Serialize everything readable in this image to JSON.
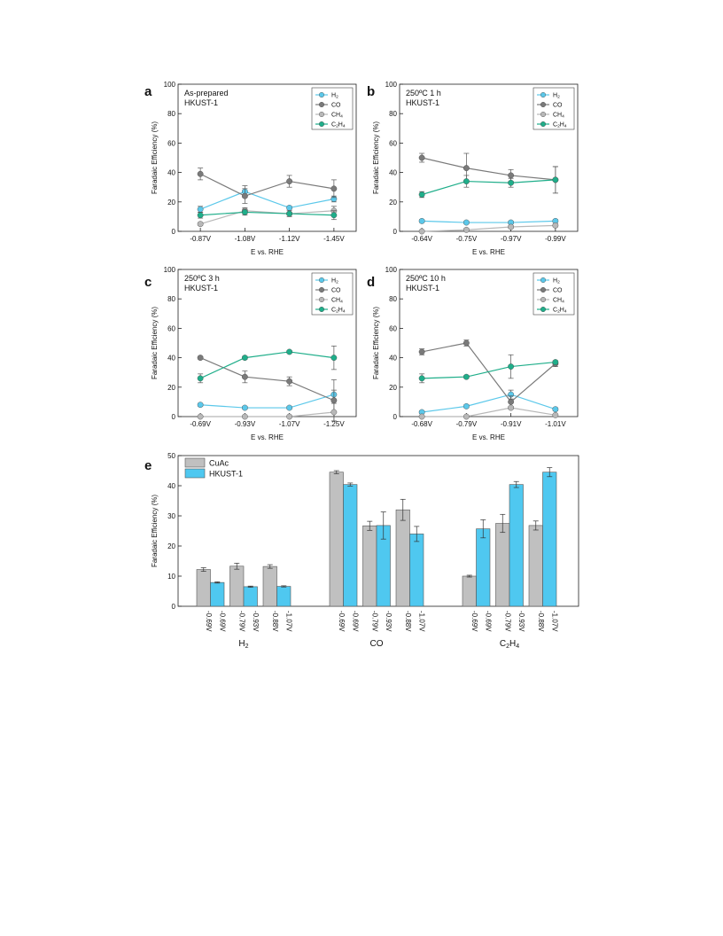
{
  "chart_data": [
    {
      "panel": "a",
      "type": "line",
      "annotation": [
        "As-prepared",
        "HKUST-1"
      ],
      "categories": [
        "-0.87V",
        "-1.08V",
        "-1.12V",
        "-1.45V"
      ],
      "xlabel": "E vs. RHE",
      "ylabel": "Faradaic Efficiency (%)",
      "ylim": [
        0,
        100
      ],
      "yticks": [
        0,
        20,
        40,
        60,
        80,
        100
      ],
      "legend_position": "top-right",
      "series": [
        {
          "name": "H2",
          "label_main": "H",
          "label_sub": "2",
          "color": "#5bc8ea",
          "values": [
            15,
            27,
            16,
            22
          ],
          "errors": [
            2,
            4,
            1,
            2
          ]
        },
        {
          "name": "CO",
          "label_main": "CO",
          "label_sub": "",
          "color": "#7a7a7a",
          "values": [
            39,
            24,
            34,
            29
          ],
          "errors": [
            4,
            5,
            4,
            6
          ]
        },
        {
          "name": "CH4",
          "label_main": "CH",
          "label_sub": "4",
          "color": "#b8b8b8",
          "values": [
            5,
            14,
            12,
            14
          ],
          "errors": [
            1,
            2,
            2,
            3
          ]
        },
        {
          "name": "C2H4",
          "label_main": "C",
          "label_sub": "2",
          "label_main2": "H",
          "label_sub2": "4",
          "color": "#1fae8a",
          "values": [
            11,
            13,
            12,
            11
          ],
          "errors": [
            2,
            2,
            1,
            3
          ]
        }
      ]
    },
    {
      "panel": "b",
      "type": "line",
      "annotation": [
        "250ºC 1 h",
        "HKUST-1"
      ],
      "categories": [
        "-0.64V",
        "-0.75V",
        "-0.97V",
        "-0.99V"
      ],
      "xlabel": "E vs. RHE",
      "ylabel": "Faradaic Efficiency (%)",
      "ylim": [
        0,
        100
      ],
      "yticks": [
        0,
        20,
        40,
        60,
        80,
        100
      ],
      "legend_position": "top-right",
      "series": [
        {
          "name": "H2",
          "label_main": "H",
          "label_sub": "2",
          "color": "#5bc8ea",
          "values": [
            7,
            6,
            6,
            7
          ],
          "errors": [
            1,
            1,
            1,
            1
          ]
        },
        {
          "name": "CO",
          "label_main": "CO",
          "label_sub": "",
          "color": "#7a7a7a",
          "values": [
            50,
            43,
            38,
            35
          ],
          "errors": [
            3,
            10,
            4,
            9
          ]
        },
        {
          "name": "CH4",
          "label_main": "CH",
          "label_sub": "4",
          "color": "#b8b8b8",
          "values": [
            0,
            1,
            3,
            4
          ],
          "errors": [
            0,
            1,
            1,
            1
          ]
        },
        {
          "name": "C2H4",
          "label_main": "C",
          "label_sub": "2",
          "label_main2": "H",
          "label_sub2": "4",
          "color": "#1fae8a",
          "values": [
            25,
            34,
            33,
            35
          ],
          "errors": [
            2,
            4,
            3,
            9
          ]
        }
      ]
    },
    {
      "panel": "c",
      "type": "line",
      "annotation": [
        "250ºC 3 h",
        "HKUST-1"
      ],
      "categories": [
        "-0.69V",
        "-0.93V",
        "-1.07V",
        "-1.25V"
      ],
      "xlabel": "E vs. RHE",
      "ylabel": "Faradaic Efficiency (%)",
      "ylim": [
        0,
        100
      ],
      "yticks": [
        0,
        20,
        40,
        60,
        80,
        100
      ],
      "legend_position": "top-right",
      "series": [
        {
          "name": "H2",
          "label_main": "H",
          "label_sub": "2",
          "color": "#5bc8ea",
          "values": [
            8,
            6,
            6,
            15
          ],
          "errors": [
            1,
            1,
            1,
            3
          ]
        },
        {
          "name": "CO",
          "label_main": "CO",
          "label_sub": "",
          "color": "#7a7a7a",
          "values": [
            40,
            27,
            24,
            11
          ],
          "errors": [
            1,
            4,
            3,
            14
          ]
        },
        {
          "name": "CH4",
          "label_main": "CH",
          "label_sub": "4",
          "color": "#b8b8b8",
          "values": [
            0,
            0,
            0,
            3
          ],
          "errors": [
            0,
            0,
            0,
            6
          ]
        },
        {
          "name": "C2H4",
          "label_main": "C",
          "label_sub": "2",
          "label_main2": "H",
          "label_sub2": "4",
          "color": "#1fae8a",
          "values": [
            26,
            40,
            44,
            40
          ],
          "errors": [
            3,
            1,
            1,
            8
          ]
        }
      ]
    },
    {
      "panel": "d",
      "type": "line",
      "annotation": [
        "250ºC 10 h",
        "HKUST-1"
      ],
      "categories": [
        "-0.68V",
        "-0.79V",
        "-0.91V",
        "-1.01V"
      ],
      "xlabel": "E vs. RHE",
      "ylabel": "Faradaic Efficiency (%)",
      "ylim": [
        0,
        100
      ],
      "yticks": [
        0,
        20,
        40,
        60,
        80,
        100
      ],
      "legend_position": "top-right",
      "series": [
        {
          "name": "H2",
          "label_main": "H",
          "label_sub": "2",
          "color": "#5bc8ea",
          "values": [
            3,
            7,
            15,
            5
          ],
          "errors": [
            1,
            1,
            3,
            1
          ]
        },
        {
          "name": "CO",
          "label_main": "CO",
          "label_sub": "",
          "color": "#7a7a7a",
          "values": [
            44,
            50,
            10,
            36
          ],
          "errors": [
            2,
            2,
            4,
            2
          ]
        },
        {
          "name": "CH4",
          "label_main": "CH",
          "label_sub": "4",
          "color": "#b8b8b8",
          "values": [
            0,
            0,
            6,
            1
          ],
          "errors": [
            0,
            0,
            1,
            0
          ]
        },
        {
          "name": "C2H4",
          "label_main": "C",
          "label_sub": "2",
          "label_main2": "H",
          "label_sub2": "4",
          "color": "#1fae8a",
          "values": [
            26,
            27,
            34,
            37
          ],
          "errors": [
            3,
            1,
            8,
            1
          ]
        }
      ]
    },
    {
      "panel": "e",
      "type": "bar",
      "ylabel": "Faradaic Efficiency (%)",
      "ylim": [
        0,
        50
      ],
      "yticks": [
        0,
        10,
        20,
        30,
        40,
        50
      ],
      "legend_position": "top-left",
      "series_meta": [
        {
          "name": "CuAc",
          "color": "#c0c0c0"
        },
        {
          "name": "HKUST-1",
          "color": "#4fc8f0"
        }
      ],
      "groups": [
        {
          "label_main": "H",
          "label_sub": "2",
          "pairs": [
            {
              "labels": [
                "-0.69V",
                "-0.69V"
              ],
              "values": [
                12.2,
                7.9
              ],
              "errors": [
                0.6,
                0.2
              ]
            },
            {
              "labels": [
                "-0.79V",
                "-0.93V"
              ],
              "values": [
                13.3,
                6.5
              ],
              "errors": [
                1.0,
                0.2
              ]
            },
            {
              "labels": [
                "-0.88V",
                "-1.07V"
              ],
              "values": [
                13.2,
                6.6
              ],
              "errors": [
                0.6,
                0.2
              ]
            }
          ]
        },
        {
          "label_main": "CO",
          "label_sub": "",
          "pairs": [
            {
              "labels": [
                "-0.69V",
                "-0.69V"
              ],
              "values": [
                44.5,
                40.4
              ],
              "errors": [
                0.5,
                0.5
              ]
            },
            {
              "labels": [
                "-0.79V",
                "-0.93V"
              ],
              "values": [
                26.7,
                26.8
              ],
              "errors": [
                1.5,
                4.5
              ]
            },
            {
              "labels": [
                "-0.88V",
                "-1.07V"
              ],
              "values": [
                32.0,
                24.0
              ],
              "errors": [
                3.5,
                2.5
              ]
            }
          ]
        },
        {
          "label_main": "C",
          "label_sub": "2",
          "label_main2": "H",
          "label_sub2": "4",
          "pairs": [
            {
              "labels": [
                "-0.69V",
                "-0.69V"
              ],
              "values": [
                10.0,
                25.7
              ],
              "errors": [
                0.3,
                3.0
              ]
            },
            {
              "labels": [
                "-0.79V",
                "-0.93V"
              ],
              "values": [
                27.5,
                40.4
              ],
              "errors": [
                3.0,
                1.0
              ]
            },
            {
              "labels": [
                "-0.88V",
                "-1.07V"
              ],
              "values": [
                26.8,
                44.5
              ],
              "errors": [
                1.5,
                1.5
              ]
            }
          ]
        }
      ]
    }
  ]
}
